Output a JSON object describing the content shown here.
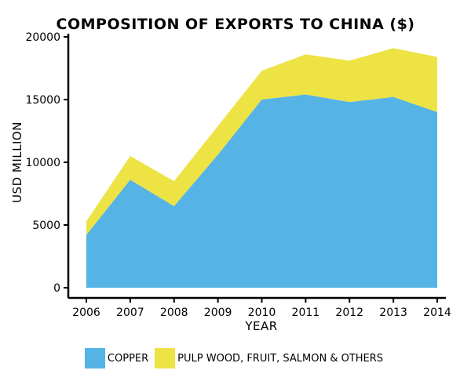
{
  "chart_data": {
    "type": "area",
    "stacked": true,
    "title": "COMPOSITION OF EXPORTS TO CHINA ($)",
    "xlabel": "YEAR",
    "ylabel": "USD MILLION",
    "x": [
      "2006",
      "2007",
      "2008",
      "2009",
      "2010",
      "2011",
      "2012",
      "2013",
      "2014"
    ],
    "ylim": [
      0,
      20000
    ],
    "yticks": [
      "0",
      "5000",
      "10000",
      "15000",
      "20000"
    ],
    "grid": false,
    "legend_position": "bottom",
    "series": [
      {
        "name": "COPPER",
        "color": "#55b3e6",
        "values": [
          4200,
          8600,
          6500,
          10600,
          15000,
          15400,
          14800,
          15200,
          14000
        ]
      },
      {
        "name": "PULP WOOD, FRUIT, SALMON & OTHERS",
        "color": "#ede345",
        "values": [
          1100,
          1900,
          2000,
          2300,
          2300,
          3200,
          3300,
          3900,
          4400
        ]
      }
    ]
  }
}
